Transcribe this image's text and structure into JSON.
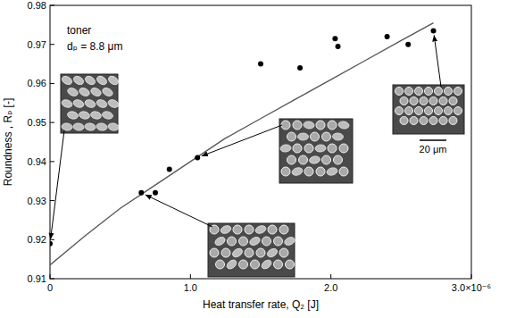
{
  "chart_data": {
    "type": "scatter",
    "x_label": "Heat transfer rate, Q₂ [J]",
    "y_label": "Roundness , Rₚ [-]",
    "annotations": [
      "toner",
      "dₚ = 8.8 μm",
      "20 μm"
    ],
    "xlim": [
      0,
      3e-06
    ],
    "xticks": [
      0,
      {
        "value": 1e-06,
        "label": "1.0"
      },
      {
        "value": 2e-06,
        "label": "2.0"
      },
      {
        "value": 3e-06,
        "label": "3.0×10⁻⁶"
      }
    ],
    "ylim": [
      0.91,
      0.98
    ],
    "yticks": [
      0.91,
      0.92,
      0.93,
      0.94,
      0.95,
      0.96,
      0.97,
      0.98
    ],
    "grid": false,
    "series": [
      {
        "type": "scatter",
        "color": "#000000",
        "marker": "circle",
        "x": [
          0,
          6.5e-07,
          7.5e-07,
          8.5e-07,
          1.05e-06,
          1.5e-06,
          1.78e-06,
          2.03e-06,
          2.05e-06,
          2.4e-06,
          2.55e-06,
          2.73e-06
        ],
        "values": [
          0.919,
          0.932,
          0.932,
          0.938,
          0.941,
          0.965,
          0.964,
          0.9715,
          0.9695,
          0.972,
          0.97,
          0.9735
        ]
      },
      {
        "type": "line",
        "color": "#555555",
        "line_style": "solid",
        "x": [
          0,
          2.5e-07,
          5e-07,
          7.5e-07,
          1e-06,
          1.25e-06,
          1.5e-06,
          1.75e-06,
          2e-06,
          2.25e-06,
          2.5e-06,
          2.73e-06
        ],
        "values": [
          0.9135,
          0.921,
          0.928,
          0.934,
          0.94,
          0.946,
          0.951,
          0.956,
          0.961,
          0.966,
          0.971,
          0.9755
        ]
      }
    ]
  }
}
